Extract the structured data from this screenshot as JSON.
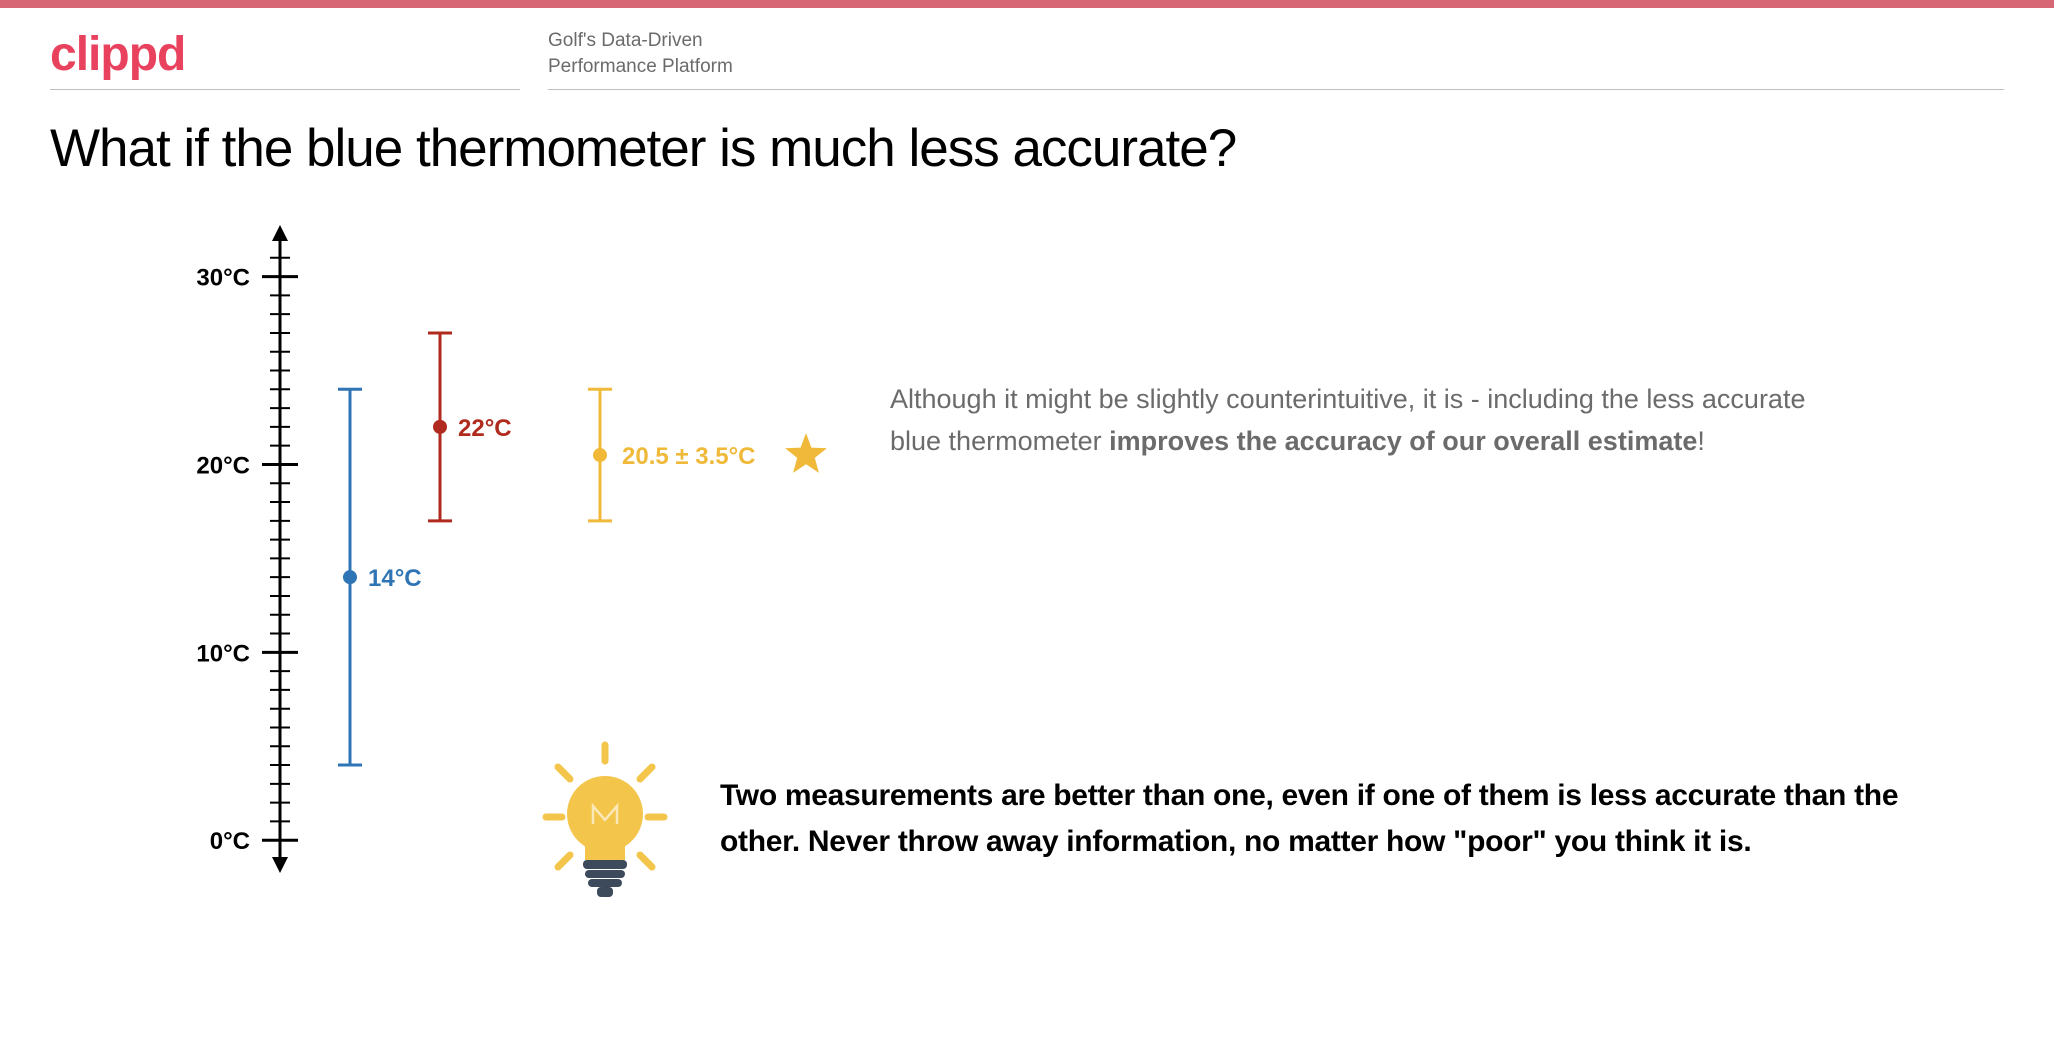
{
  "brand": {
    "text": "clippd",
    "color": "#e9425f"
  },
  "tagline": {
    "line1": "Golf's Data-Driven",
    "line2": "Performance Platform"
  },
  "topbar_color": "#d76774",
  "title": "What if the blue thermometer is much less accurate?",
  "chart": {
    "type": "errorbar",
    "axis_color": "#000000",
    "ylim": [
      -1,
      32
    ],
    "major_ticks": [
      0,
      10,
      20,
      30
    ],
    "major_tick_labels": [
      "0°C",
      "10°C",
      "20°C",
      "30°C"
    ],
    "minor_tick_step": 1,
    "tick_len_major": 18,
    "tick_len_minor": 10,
    "axis_line_width": 3,
    "series": [
      {
        "name": "blue",
        "x": 0,
        "mean": 14,
        "low": 4,
        "high": 24,
        "color": "#2f74b5",
        "label": "14°C",
        "label_dx": 18,
        "line_width": 3,
        "marker_r": 7
      },
      {
        "name": "red",
        "x": 1,
        "mean": 22,
        "low": 17,
        "high": 27,
        "color": "#b02a1e",
        "label": "22°C",
        "label_dx": 18,
        "line_width": 3,
        "marker_r": 7
      },
      {
        "name": "yellow",
        "x": 2,
        "mean": 20.5,
        "low": 17,
        "high": 24,
        "color": "#f0b93a",
        "label": "20.5 ± 3.5°C",
        "label_dx": 22,
        "line_width": 3,
        "marker_r": 7
      }
    ],
    "cap_half_width": 12,
    "x_start": 70,
    "x_step": 90,
    "star": {
      "color": "#f0b93a",
      "size": 22
    }
  },
  "explain": {
    "pre": "Although it might be slightly counterintuitive, it is - including the less accurate blue thermometer ",
    "bold": "improves the accuracy of our overall estimate",
    "post": "!"
  },
  "insight": {
    "text": "Two measurements are better than one, even if one of them is less accurate than the other. Never throw away information, no matter how \"poor\" you think it is.",
    "bulb_color": "#f3c54b",
    "bulb_base_color": "#3d4a5c"
  }
}
